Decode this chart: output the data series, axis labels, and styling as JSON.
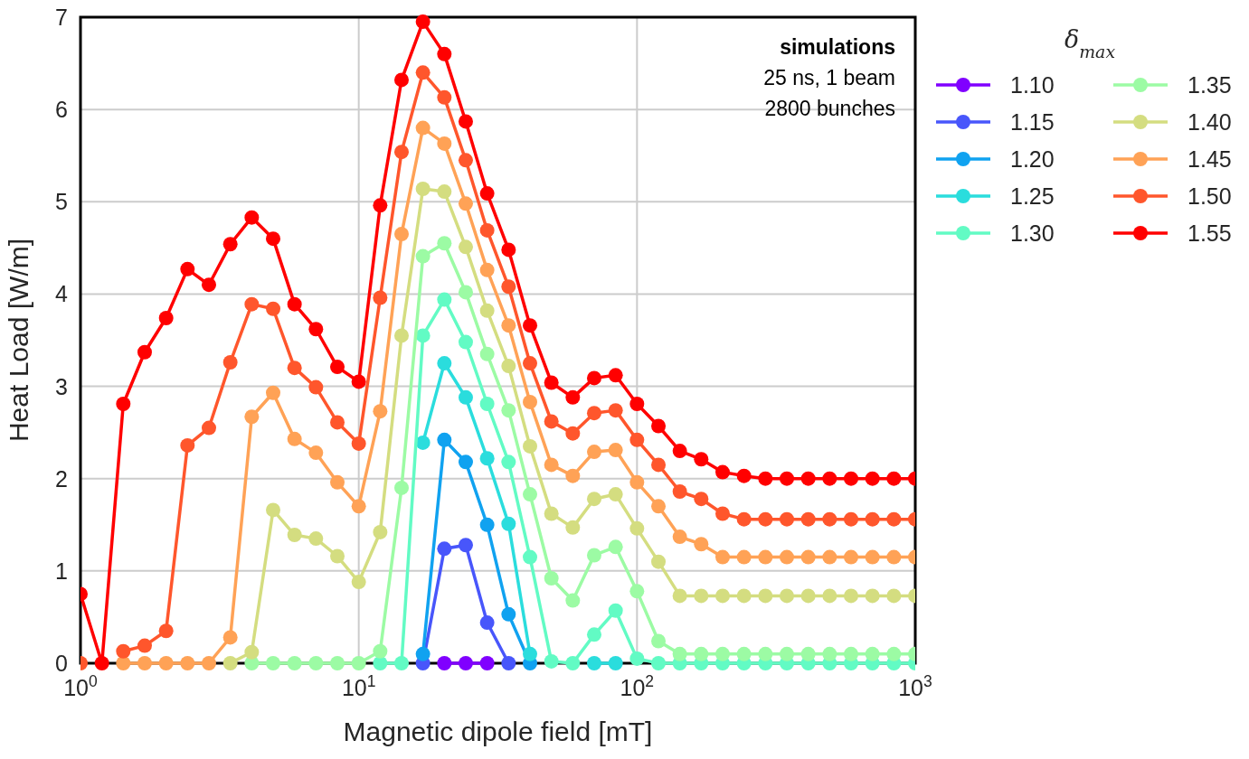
{
  "chart_data": {
    "type": "line",
    "xlabel": "Magnetic dipole field [mT]",
    "ylabel": "Heat Load [W/m]",
    "legend_title": "δ$_{max}$",
    "annotations": [
      "simulations",
      "25 ns, 1 beam",
      "2800 bunches"
    ],
    "log": "x",
    "grid": true,
    "legend": "right",
    "marker": "circle",
    "line_style": "solid",
    "xlim": [
      1,
      1000
    ],
    "ylim": [
      0,
      7
    ],
    "xticks": [
      {
        "value": 1,
        "label": "10$^{0}$"
      },
      {
        "value": 10,
        "label": "10$^{1}$"
      },
      {
        "value": 100,
        "label": "10$^{2}$"
      },
      {
        "value": 1000,
        "label": "10$^{3}$"
      }
    ],
    "yticks": [
      0,
      1,
      2,
      3,
      4,
      5,
      6,
      7
    ],
    "x": [
      1,
      1.194,
      1.425,
      1.701,
      2.031,
      2.424,
      2.894,
      3.455,
      4.125,
      4.924,
      5.878,
      7.017,
      8.377,
      10,
      11.94,
      14.25,
      17.01,
      20.31,
      24.24,
      28.94,
      34.55,
      41.25,
      49.24,
      58.78,
      70.17,
      83.77,
      100,
      119.4,
      142.5,
      170.1,
      203.1,
      242.4,
      289.4,
      345.5,
      412.5,
      492.4,
      587.8,
      701.7,
      837.7,
      1000
    ],
    "series": [
      {
        "name": "1.10",
        "color": "#8000ff",
        "values": [
          null,
          null,
          null,
          null,
          null,
          null,
          null,
          null,
          null,
          null,
          null,
          null,
          null,
          null,
          null,
          null,
          null,
          0,
          0,
          0,
          null,
          null,
          null,
          null,
          null,
          null,
          null,
          null,
          null,
          null,
          null,
          null,
          null,
          null,
          null,
          null,
          null,
          null,
          null,
          null
        ]
      },
      {
        "name": "1.15",
        "color": "#4856fb",
        "values": [
          null,
          null,
          null,
          null,
          null,
          null,
          null,
          null,
          null,
          null,
          null,
          null,
          null,
          null,
          null,
          null,
          0,
          1.24,
          1.28,
          0.44,
          0,
          null,
          null,
          null,
          null,
          null,
          null,
          null,
          null,
          null,
          null,
          null,
          null,
          null,
          null,
          null,
          null,
          null,
          null,
          null
        ]
      },
      {
        "name": "1.20",
        "color": "#10a2f0",
        "values": [
          null,
          null,
          null,
          null,
          null,
          null,
          null,
          null,
          null,
          null,
          null,
          null,
          null,
          null,
          null,
          null,
          0.1,
          2.42,
          2.18,
          1.5,
          0.53,
          0,
          null,
          null,
          null,
          null,
          null,
          null,
          null,
          null,
          null,
          null,
          null,
          null,
          null,
          null,
          null,
          null,
          null,
          null
        ]
      },
      {
        "name": "1.25",
        "color": "#2adddd",
        "values": [
          null,
          null,
          null,
          null,
          null,
          null,
          null,
          null,
          null,
          null,
          null,
          null,
          null,
          null,
          null,
          null,
          2.39,
          3.25,
          2.88,
          2.22,
          1.51,
          0.1,
          null,
          null,
          0,
          0,
          null,
          null,
          null,
          null,
          null,
          null,
          null,
          null,
          null,
          null,
          null,
          null,
          null,
          null
        ]
      },
      {
        "name": "1.30",
        "color": "#62fbc4",
        "values": [
          null,
          null,
          null,
          null,
          null,
          null,
          null,
          null,
          null,
          null,
          null,
          null,
          null,
          null,
          0,
          0,
          3.55,
          3.94,
          3.48,
          2.81,
          2.18,
          1.15,
          0.02,
          0,
          0.31,
          0.57,
          0.05,
          0,
          0,
          0,
          0,
          0,
          0,
          0,
          0,
          0,
          0,
          0,
          0,
          0
        ]
      },
      {
        "name": "1.35",
        "color": "#9cfba4",
        "values": [
          null,
          null,
          null,
          null,
          null,
          null,
          null,
          null,
          0,
          0,
          0,
          0,
          0,
          0,
          0.13,
          1.9,
          4.41,
          4.55,
          4.02,
          3.35,
          2.74,
          1.83,
          0.92,
          0.68,
          1.17,
          1.26,
          0.78,
          0.24,
          0.1,
          0.1,
          0.1,
          0.1,
          0.1,
          0.1,
          0.1,
          0.1,
          0.1,
          0.1,
          0.1,
          0.1
        ]
      },
      {
        "name": "1.40",
        "color": "#d4dd80",
        "values": [
          null,
          null,
          null,
          null,
          null,
          null,
          null,
          0,
          0.12,
          1.66,
          1.39,
          1.35,
          1.16,
          0.88,
          1.42,
          3.55,
          5.14,
          5.11,
          4.51,
          3.82,
          3.22,
          2.35,
          1.62,
          1.47,
          1.78,
          1.83,
          1.46,
          1.1,
          0.73,
          0.73,
          0.73,
          0.73,
          0.73,
          0.73,
          0.73,
          0.73,
          0.73,
          0.73,
          0.73,
          0.73
        ]
      },
      {
        "name": "1.45",
        "color": "#ffa256",
        "values": [
          null,
          null,
          0,
          0,
          0,
          0,
          0,
          0.28,
          2.67,
          2.93,
          2.43,
          2.28,
          1.96,
          1.7,
          2.73,
          4.65,
          5.8,
          5.63,
          4.98,
          4.26,
          3.66,
          2.83,
          2.15,
          2.03,
          2.29,
          2.31,
          1.96,
          1.7,
          1.37,
          1.29,
          1.15,
          1.15,
          1.15,
          1.15,
          1.15,
          1.15,
          1.15,
          1.15,
          1.15,
          1.15
        ]
      },
      {
        "name": "1.50",
        "color": "#ff562c",
        "values": [
          0,
          null,
          0.13,
          0.19,
          0.35,
          2.36,
          2.55,
          3.26,
          3.89,
          3.84,
          3.2,
          2.99,
          2.61,
          2.38,
          3.96,
          5.54,
          6.4,
          6.13,
          5.45,
          4.69,
          4.08,
          3.25,
          2.62,
          2.49,
          2.71,
          2.74,
          2.42,
          2.15,
          1.86,
          1.78,
          1.62,
          1.56,
          1.56,
          1.56,
          1.56,
          1.56,
          1.56,
          1.56,
          1.56,
          1.56
        ]
      },
      {
        "name": "1.55",
        "color": "#ff0000",
        "values": [
          0.75,
          0,
          2.81,
          3.37,
          3.74,
          4.27,
          4.1,
          4.54,
          4.83,
          4.6,
          3.89,
          3.62,
          3.21,
          3.05,
          4.96,
          6.32,
          6.95,
          6.6,
          5.87,
          5.09,
          4.48,
          3.66,
          3.04,
          2.88,
          3.09,
          3.12,
          2.81,
          2.57,
          2.3,
          2.21,
          2.07,
          2.03,
          2,
          2,
          2,
          2,
          2,
          2,
          2,
          2
        ]
      }
    ]
  }
}
